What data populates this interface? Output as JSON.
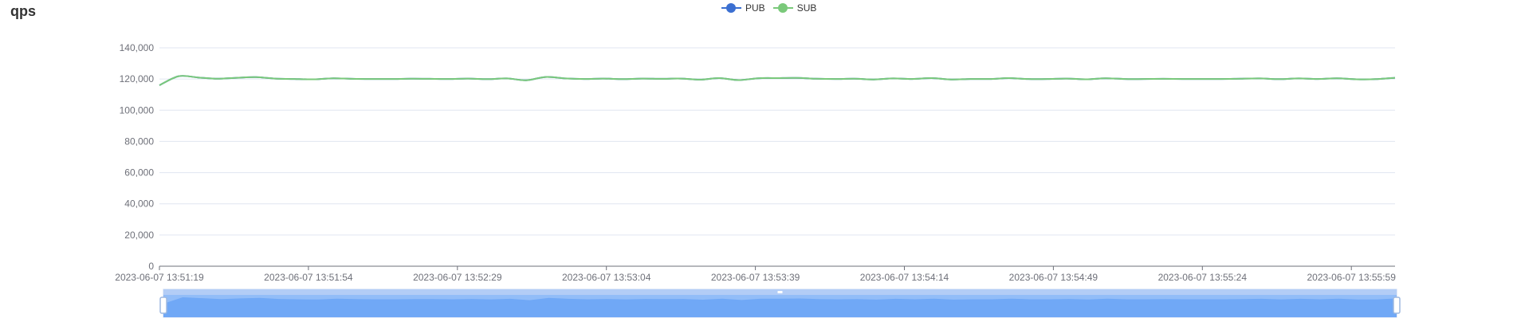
{
  "panel": {
    "title": "qps"
  },
  "legend": [
    {
      "name": "PUB",
      "color": "#3b6fd1",
      "icon": "circle-line-icon"
    },
    {
      "name": "SUB",
      "color": "#7ac97a",
      "icon": "circle-line-icon"
    }
  ],
  "chart_data": {
    "type": "line",
    "title": "qps",
    "xlabel": "",
    "ylabel": "",
    "ylim": [
      0,
      140000
    ],
    "y_ticks": [
      "0",
      "20,000",
      "40,000",
      "60,000",
      "80,000",
      "100,000",
      "120,000",
      "140,000"
    ],
    "x_ticks": [
      "2023-06-07 13:51:19",
      "2023-06-07 13:51:54",
      "2023-06-07 13:52:29",
      "2023-06-07 13:53:04",
      "2023-06-07 13:53:39",
      "2023-06-07 13:54:14",
      "2023-06-07 13:54:49",
      "2023-06-07 13:55:24",
      "2023-06-07 13:55:59"
    ],
    "x_range": [
      "2023-06-07 13:51:19",
      "2023-06-07 13:55:59"
    ],
    "grid": true,
    "legend_position": "top-center",
    "series": [
      {
        "name": "PUB",
        "color": "#3b6fd1",
        "values": [
          116000,
          121800,
          121000,
          120200,
          120800,
          121200,
          120300,
          120000,
          119800,
          120500,
          120100,
          120000,
          120000,
          120200,
          120100,
          120000,
          120300,
          119900,
          120400,
          119200,
          121300,
          120400,
          120000,
          120300,
          119900,
          120300,
          120100,
          120300,
          119600,
          120600,
          119300,
          120500,
          120600,
          120700,
          120200,
          120000,
          120200,
          119700,
          120400,
          120000,
          120600,
          119700,
          120000,
          120000,
          120600,
          120000,
          120000,
          120300,
          119800,
          120500,
          120000,
          120000,
          120100,
          120000,
          120000,
          120000,
          120200,
          120400,
          119900,
          120400,
          120000,
          120500,
          119800,
          119900,
          120800
        ]
      },
      {
        "name": "SUB",
        "color": "#7ac97a",
        "values": [
          116000,
          121800,
          121000,
          120200,
          120800,
          121200,
          120300,
          120000,
          119800,
          120500,
          120100,
          120000,
          120000,
          120200,
          120100,
          120000,
          120300,
          119900,
          120400,
          119200,
          121300,
          120400,
          120000,
          120300,
          119900,
          120300,
          120100,
          120300,
          119600,
          120600,
          119300,
          120500,
          120600,
          120700,
          120200,
          120000,
          120200,
          119700,
          120400,
          120000,
          120600,
          119700,
          120000,
          120000,
          120600,
          120000,
          120000,
          120300,
          119800,
          120500,
          120000,
          120000,
          120100,
          120000,
          120000,
          120000,
          120200,
          120400,
          119900,
          120400,
          120000,
          120500,
          119800,
          119900,
          120800
        ]
      }
    ],
    "zoom": {
      "start_percent": 0,
      "end_percent": 100
    }
  }
}
